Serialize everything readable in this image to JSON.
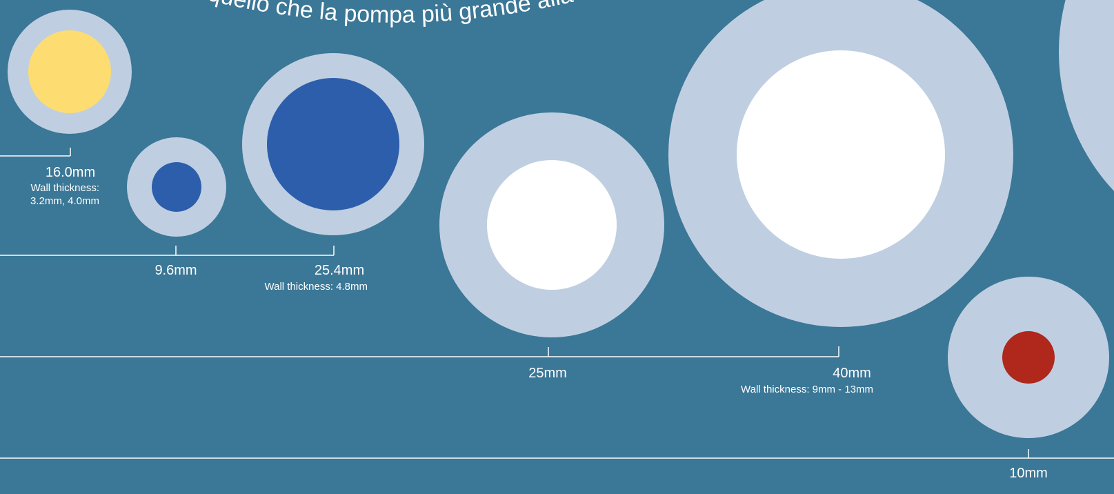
{
  "header_text": "quello che la pompa più grande alla",
  "colors": {
    "background": "#3b7796",
    "tube_wall": "#bfcfe1",
    "bore_yellow": "#fddc71",
    "bore_blue": "#2d5eab",
    "bore_white": "#ffffff",
    "bore_red": "#b0271b",
    "line": "#ffffff"
  },
  "tubes": [
    {
      "id": "tube-16mm",
      "size_label": "16.0mm",
      "wall_label": [
        "Wall thickness:",
        "3.2mm, 4.0mm"
      ],
      "bore_color": "bore_yellow"
    },
    {
      "id": "tube-9-6mm",
      "size_label": "9.6mm",
      "wall_label": [],
      "bore_color": "bore_blue"
    },
    {
      "id": "tube-25-4mm",
      "size_label": "25.4mm",
      "wall_label": [
        "Wall thickness: 4.8mm"
      ],
      "bore_color": "bore_blue"
    },
    {
      "id": "tube-25mm",
      "size_label": "25mm",
      "wall_label": [],
      "bore_color": "bore_white"
    },
    {
      "id": "tube-40mm",
      "size_label": "40mm",
      "wall_label": [
        "Wall thickness: 9mm - 13mm"
      ],
      "bore_color": "bore_white"
    },
    {
      "id": "tube-10mm",
      "size_label": "10mm",
      "wall_label": [],
      "bore_color": "bore_red"
    },
    {
      "id": "tube-partial-right",
      "size_label": "",
      "wall_label": [],
      "bore_color": "tube_wall"
    }
  ]
}
